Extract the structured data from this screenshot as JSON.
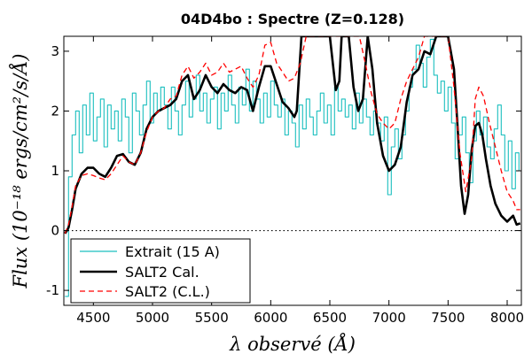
{
  "chart_data": {
    "type": "line",
    "title": "04D4bo : Spectre (Z=0.128)",
    "xlabel": "λ observé (Å)",
    "ylabel": "Flux (10⁻¹⁸ ergs/cm²/s/Å)",
    "xlim": [
      4250,
      8120
    ],
    "ylim": [
      -1.25,
      3.25
    ],
    "xticks": [
      4500,
      5000,
      5500,
      6000,
      6500,
      7000,
      7500,
      8000
    ],
    "yticks": [
      -1,
      0,
      1,
      2,
      3
    ],
    "grid": false,
    "zero_line": {
      "y": 0,
      "style": "dotted"
    },
    "legend": {
      "placement": "bottom-left"
    },
    "series": [
      {
        "name": "Extrait (15 A)",
        "style": "steps",
        "color": "#1bbfbf",
        "x": [
          4260,
          4290,
          4320,
          4350,
          4380,
          4410,
          4440,
          4470,
          4500,
          4530,
          4560,
          4590,
          4620,
          4650,
          4680,
          4710,
          4740,
          4770,
          4800,
          4830,
          4860,
          4890,
          4920,
          4950,
          4980,
          5010,
          5040,
          5070,
          5100,
          5130,
          5160,
          5190,
          5220,
          5250,
          5280,
          5310,
          5340,
          5370,
          5400,
          5430,
          5460,
          5490,
          5520,
          5550,
          5580,
          5610,
          5640,
          5670,
          5700,
          5730,
          5760,
          5790,
          5820,
          5850,
          5880,
          5910,
          5940,
          5970,
          6000,
          6030,
          6060,
          6090,
          6120,
          6150,
          6180,
          6210,
          6240,
          6270,
          6300,
          6330,
          6360,
          6390,
          6420,
          6450,
          6480,
          6510,
          6540,
          6570,
          6600,
          6630,
          6660,
          6690,
          6720,
          6750,
          6780,
          6810,
          6840,
          6870,
          6900,
          6930,
          6960,
          6990,
          7020,
          7050,
          7080,
          7110,
          7140,
          7170,
          7200,
          7230,
          7260,
          7290,
          7320,
          7350,
          7380,
          7410,
          7440,
          7470,
          7500,
          7530,
          7560,
          7590,
          7620,
          7650,
          7680,
          7710,
          7740,
          7770,
          7800,
          7830,
          7860,
          7890,
          7920,
          7950,
          7980,
          8010,
          8040,
          8070,
          8100
        ],
        "values": [
          -1.1,
          0.9,
          1.6,
          2.0,
          1.3,
          2.1,
          1.6,
          2.3,
          1.5,
          1.9,
          2.2,
          1.4,
          2.1,
          1.7,
          2.0,
          1.5,
          2.2,
          1.9,
          1.3,
          2.3,
          2.0,
          1.6,
          2.1,
          2.5,
          1.8,
          2.3,
          2.0,
          2.4,
          2.1,
          1.7,
          2.4,
          2.0,
          1.6,
          2.1,
          2.5,
          1.9,
          2.2,
          2.6,
          2.0,
          2.3,
          1.8,
          2.2,
          2.4,
          1.7,
          2.3,
          2.0,
          2.6,
          2.1,
          1.8,
          2.4,
          2.1,
          2.7,
          2.0,
          2.5,
          2.2,
          1.8,
          2.3,
          1.9,
          2.5,
          2.1,
          1.9,
          2.2,
          1.6,
          2.0,
          1.8,
          1.4,
          2.1,
          1.7,
          2.2,
          1.9,
          1.6,
          2.0,
          2.3,
          1.8,
          2.1,
          1.6,
          2.4,
          2.0,
          2.2,
          1.9,
          2.1,
          1.7,
          2.3,
          1.8,
          2.2,
          1.9,
          1.6,
          2.0,
          1.8,
          1.5,
          1.9,
          0.6,
          1.4,
          1.7,
          1.2,
          1.6,
          2.0,
          2.4,
          2.7,
          3.1,
          2.8,
          2.4,
          2.9,
          3.2,
          2.6,
          2.3,
          2.5,
          2.0,
          2.4,
          1.8,
          1.2,
          1.6,
          1.9,
          1.3,
          0.8,
          1.5,
          2.0,
          1.6,
          1.9,
          1.4,
          1.2,
          1.7,
          2.1,
          1.6,
          1.0,
          1.5,
          0.7,
          1.3,
          1.0
        ]
      },
      {
        "name": "SALT2 Cal.",
        "style": "solid",
        "color": "#000000",
        "x": [
          4260,
          4290,
          4320,
          4350,
          4400,
          4450,
          4500,
          4550,
          4600,
          4650,
          4700,
          4750,
          4800,
          4850,
          4900,
          4950,
          5000,
          5050,
          5100,
          5150,
          5200,
          5250,
          5300,
          5350,
          5400,
          5450,
          5500,
          5550,
          5600,
          5650,
          5700,
          5750,
          5800,
          5850,
          5900,
          5950,
          6000,
          6050,
          6100,
          6150,
          6200,
          6220,
          6260,
          6300,
          6350,
          6400,
          6450,
          6500,
          6550,
          6580,
          6600,
          6630,
          6660,
          6700,
          6740,
          6780,
          6820,
          6860,
          6900,
          6950,
          7000,
          7050,
          7100,
          7150,
          7200,
          7250,
          7300,
          7350,
          7400,
          7450,
          7500,
          7550,
          7580,
          7610,
          7640,
          7670,
          7700,
          7730,
          7760,
          7790,
          7820,
          7860,
          7900,
          7950,
          8000,
          8050,
          8080,
          8110
        ],
        "values": [
          -0.05,
          0.05,
          0.35,
          0.7,
          0.95,
          1.05,
          1.05,
          0.95,
          0.9,
          1.05,
          1.25,
          1.28,
          1.15,
          1.1,
          1.3,
          1.7,
          1.9,
          2.0,
          2.05,
          2.1,
          2.2,
          2.5,
          2.6,
          2.2,
          2.35,
          2.6,
          2.4,
          2.3,
          2.45,
          2.35,
          2.3,
          2.4,
          2.35,
          2.0,
          2.4,
          2.75,
          2.75,
          2.45,
          2.15,
          2.05,
          1.9,
          2.0,
          3.25,
          3.25,
          3.25,
          3.25,
          3.25,
          3.25,
          2.35,
          2.5,
          3.25,
          3.25,
          3.25,
          2.4,
          2.0,
          2.2,
          3.25,
          2.7,
          1.8,
          1.25,
          1.0,
          1.1,
          1.4,
          2.15,
          2.6,
          2.7,
          3.0,
          2.95,
          3.25,
          3.25,
          3.25,
          2.7,
          1.75,
          0.75,
          0.28,
          0.6,
          1.35,
          1.75,
          1.8,
          1.6,
          1.2,
          0.75,
          0.45,
          0.25,
          0.15,
          0.25,
          0.1,
          0.12
        ]
      },
      {
        "name": "SALT2 (C.L.)",
        "style": "dashed",
        "color": "#ff0000",
        "x": [
          4260,
          4290,
          4320,
          4350,
          4400,
          4450,
          4500,
          4550,
          4600,
          4650,
          4700,
          4750,
          4800,
          4850,
          4900,
          4950,
          5000,
          5050,
          5100,
          5150,
          5200,
          5250,
          5300,
          5350,
          5400,
          5450,
          5500,
          5550,
          5600,
          5650,
          5700,
          5750,
          5800,
          5850,
          5900,
          5950,
          6000,
          6050,
          6100,
          6150,
          6200,
          6250,
          6300,
          6350,
          6400,
          6450,
          6500,
          6550,
          6600,
          6650,
          6700,
          6750,
          6800,
          6850,
          6900,
          6950,
          7000,
          7050,
          7100,
          7150,
          7200,
          7250,
          7300,
          7350,
          7400,
          7450,
          7500,
          7550,
          7600,
          7650,
          7700,
          7730,
          7760,
          7800,
          7850,
          7900,
          7950,
          8000,
          8050,
          8080,
          8110
        ],
        "values": [
          -0.05,
          0.1,
          0.4,
          0.75,
          0.92,
          0.95,
          0.92,
          0.88,
          0.85,
          0.95,
          1.1,
          1.25,
          1.15,
          1.1,
          1.3,
          1.65,
          1.9,
          2.0,
          2.05,
          2.2,
          2.25,
          2.6,
          2.75,
          2.55,
          2.65,
          2.8,
          2.6,
          2.65,
          2.8,
          2.65,
          2.7,
          2.75,
          2.55,
          2.4,
          2.6,
          3.1,
          3.15,
          2.8,
          2.65,
          2.5,
          2.55,
          2.8,
          3.25,
          3.25,
          3.25,
          3.25,
          3.25,
          3.25,
          3.25,
          3.25,
          3.25,
          3.25,
          2.8,
          2.3,
          1.95,
          1.8,
          1.7,
          1.8,
          2.2,
          2.5,
          2.7,
          2.9,
          3.25,
          3.25,
          3.25,
          3.25,
          3.25,
          2.4,
          1.3,
          0.65,
          1.2,
          2.2,
          2.4,
          2.25,
          1.8,
          1.4,
          1.0,
          0.65,
          0.5,
          0.35,
          0.35
        ]
      }
    ]
  }
}
